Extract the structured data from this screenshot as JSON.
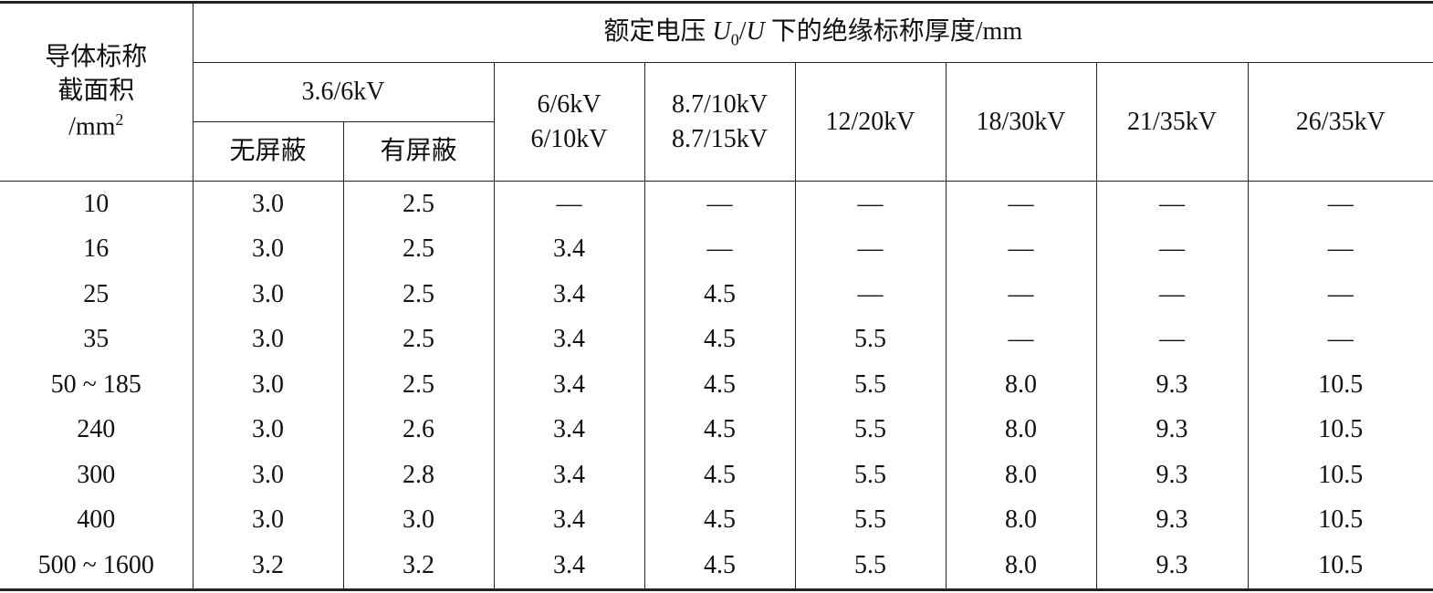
{
  "header": {
    "conductor": [
      "导体标称",
      "截面积",
      "/mm",
      "2"
    ],
    "voltage_title": [
      "额定电压 ",
      "U",
      "0",
      "/",
      "U",
      " 下的绝缘标称厚度/mm"
    ],
    "group": {
      "label": "3.6/6kV",
      "sub": [
        "无屏蔽",
        "有屏蔽"
      ]
    },
    "columns": [
      [
        "6/6kV",
        "6/10kV"
      ],
      [
        "8.7/10kV",
        "8.7/15kV"
      ],
      [
        "12/20kV"
      ],
      [
        "18/30kV"
      ],
      [
        "21/35kV"
      ],
      [
        "26/35kV"
      ]
    ]
  },
  "rows": [
    [
      "10",
      "3.0",
      "2.5",
      "—",
      "—",
      "—",
      "—",
      "—",
      "—"
    ],
    [
      "16",
      "3.0",
      "2.5",
      "3.4",
      "—",
      "—",
      "—",
      "—",
      "—"
    ],
    [
      "25",
      "3.0",
      "2.5",
      "3.4",
      "4.5",
      "—",
      "—",
      "—",
      "—"
    ],
    [
      "35",
      "3.0",
      "2.5",
      "3.4",
      "4.5",
      "5.5",
      "—",
      "—",
      "—"
    ],
    [
      "50 ~ 185",
      "3.0",
      "2.5",
      "3.4",
      "4.5",
      "5.5",
      "8.0",
      "9.3",
      "10.5"
    ],
    [
      "240",
      "3.0",
      "2.6",
      "3.4",
      "4.5",
      "5.5",
      "8.0",
      "9.3",
      "10.5"
    ],
    [
      "300",
      "3.0",
      "2.8",
      "3.4",
      "4.5",
      "5.5",
      "8.0",
      "9.3",
      "10.5"
    ],
    [
      "400",
      "3.0",
      "3.0",
      "3.4",
      "4.5",
      "5.5",
      "8.0",
      "9.3",
      "10.5"
    ],
    [
      "500 ~ 1600",
      "3.2",
      "3.2",
      "3.4",
      "4.5",
      "5.5",
      "8.0",
      "9.3",
      "10.5"
    ]
  ]
}
